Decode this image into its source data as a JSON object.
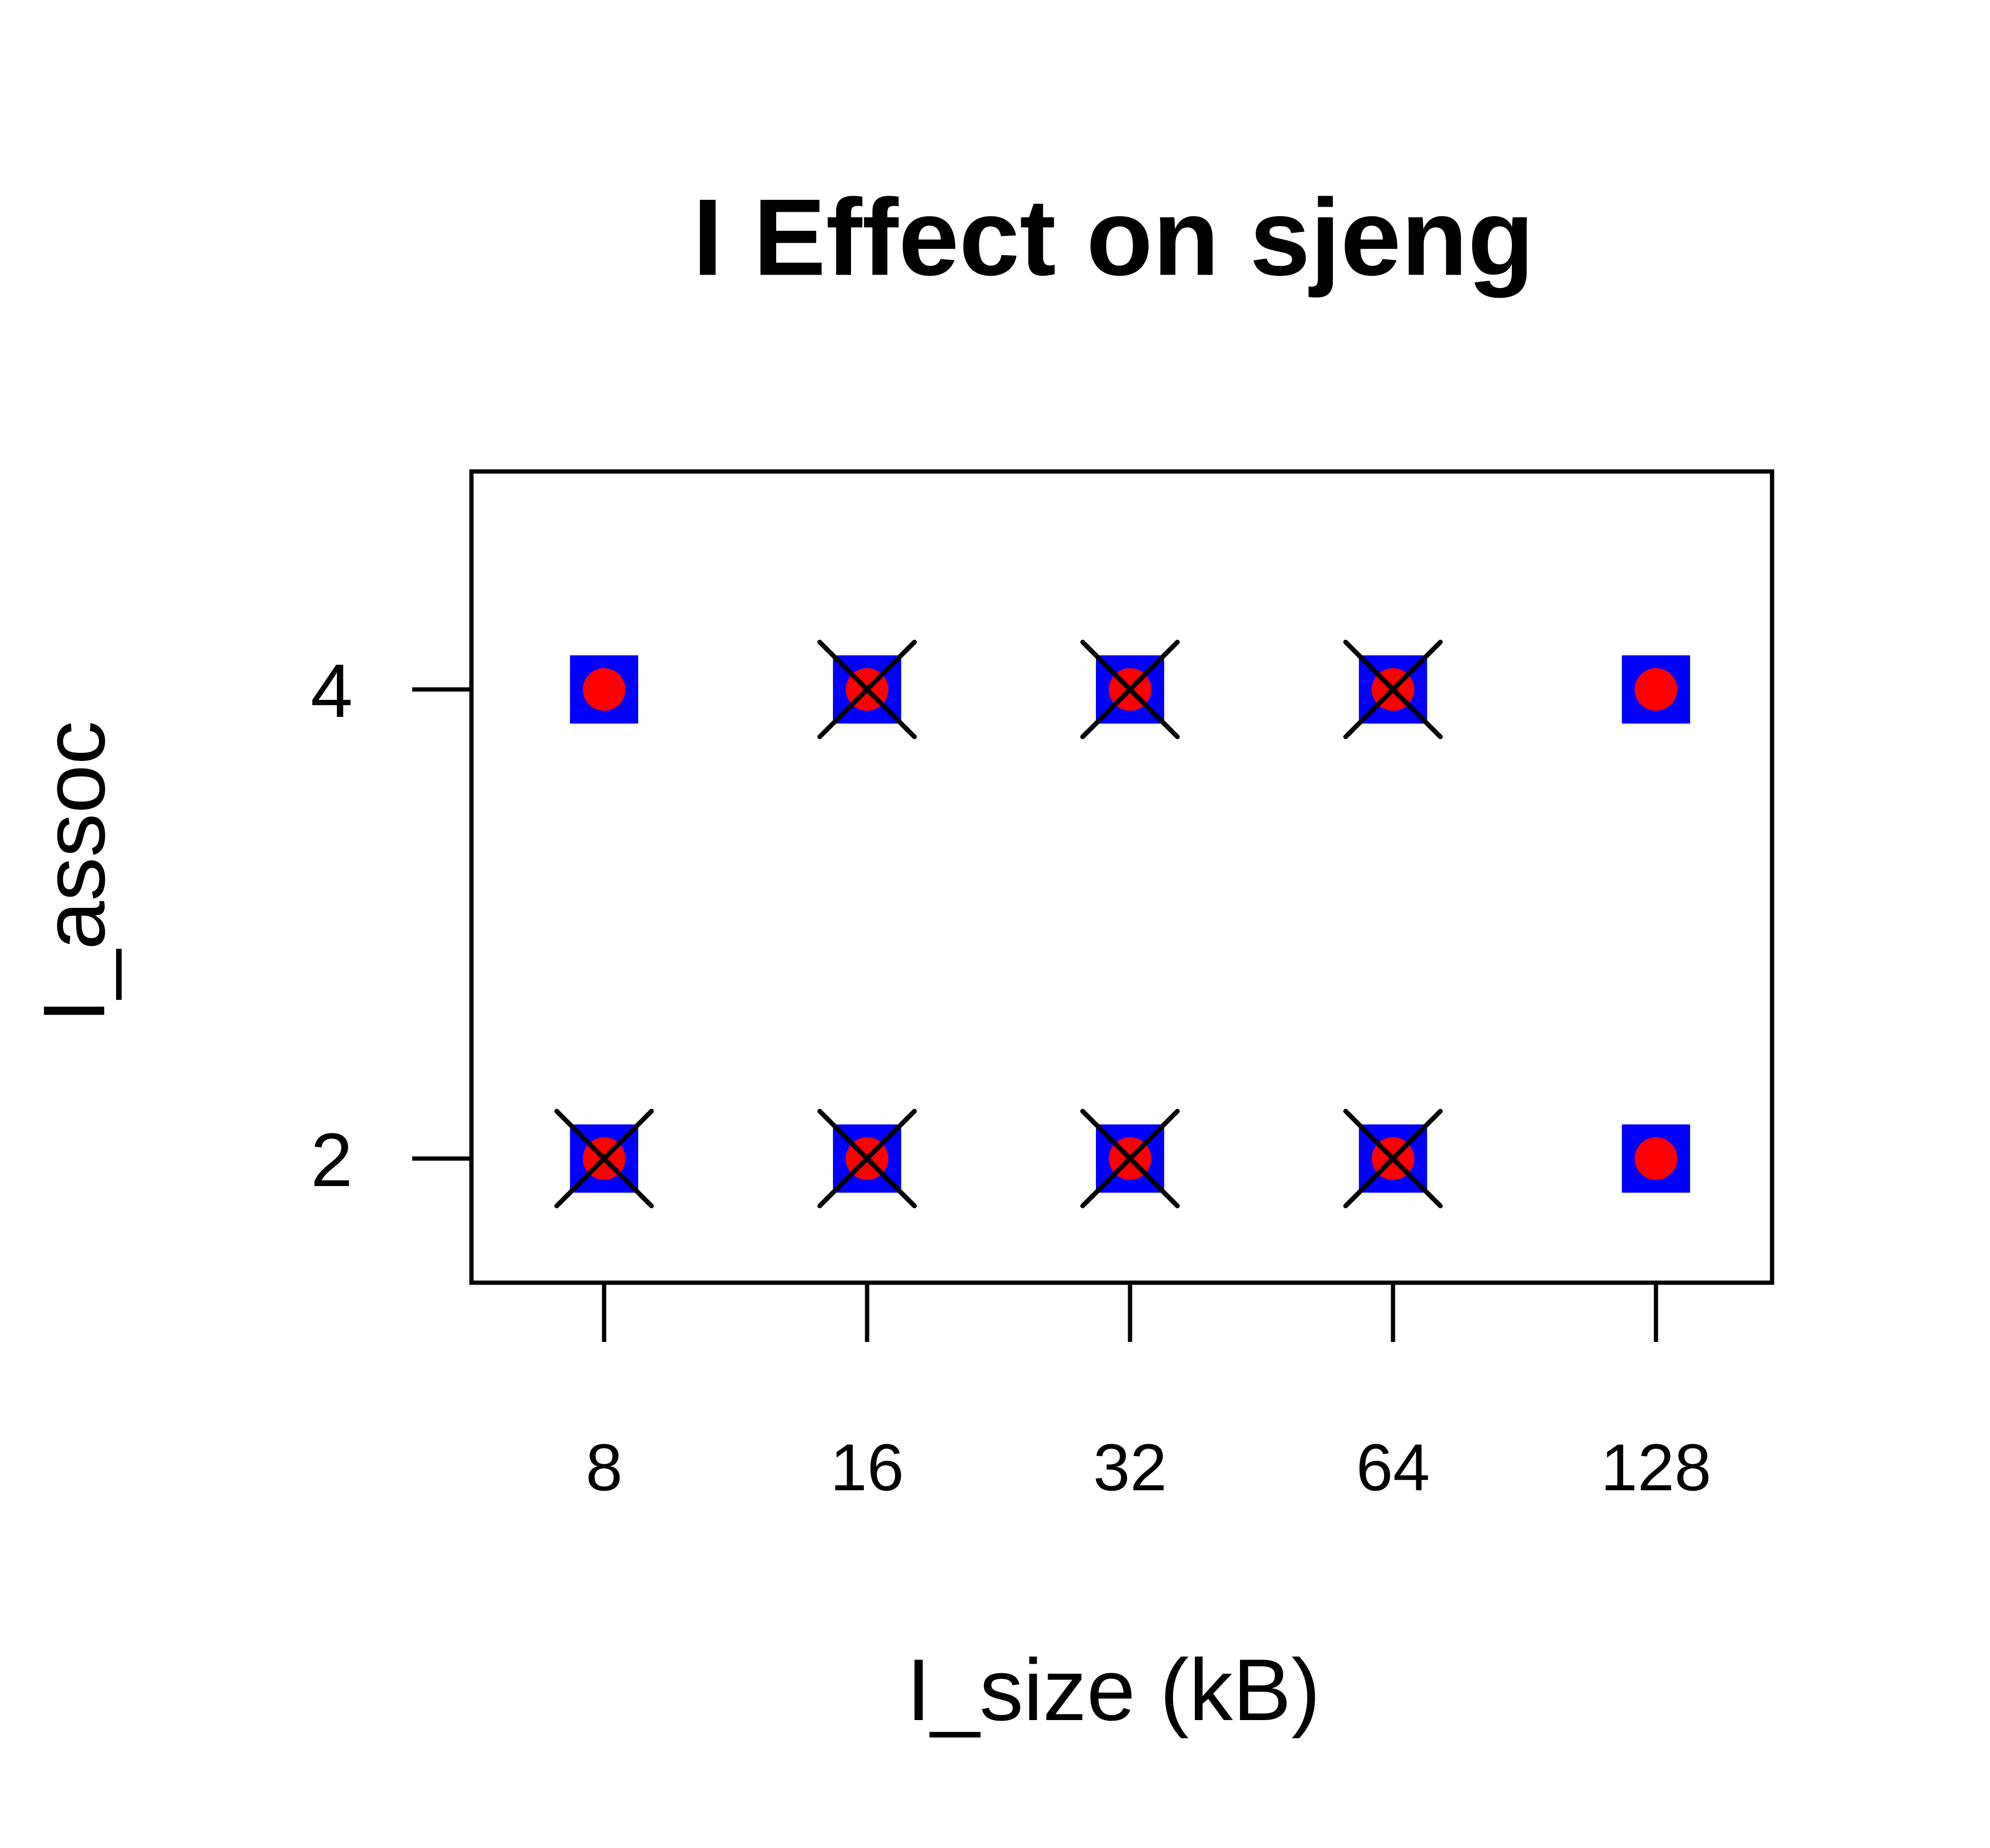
{
  "chart_data": {
    "type": "scatter",
    "title": "I Effect on sjeng",
    "xlabel": "I_size (kB)",
    "ylabel": "I_assoc",
    "x_categories": [
      "8",
      "16",
      "32",
      "64",
      "128"
    ],
    "y_ticks": [
      "2",
      "4"
    ],
    "grid": false,
    "legend": "none",
    "series": [
      {
        "marker": "square",
        "color": "#0000ff",
        "points": [
          {
            "x": "8",
            "y": 4
          },
          {
            "x": "16",
            "y": 4
          },
          {
            "x": "32",
            "y": 4
          },
          {
            "x": "64",
            "y": 4
          },
          {
            "x": "128",
            "y": 4
          },
          {
            "x": "8",
            "y": 2
          },
          {
            "x": "16",
            "y": 2
          },
          {
            "x": "32",
            "y": 2
          },
          {
            "x": "64",
            "y": 2
          },
          {
            "x": "128",
            "y": 2
          }
        ]
      },
      {
        "marker": "circle",
        "color": "#ff0000",
        "points": [
          {
            "x": "8",
            "y": 4
          },
          {
            "x": "16",
            "y": 4
          },
          {
            "x": "32",
            "y": 4
          },
          {
            "x": "64",
            "y": 4
          },
          {
            "x": "128",
            "y": 4
          },
          {
            "x": "8",
            "y": 2
          },
          {
            "x": "16",
            "y": 2
          },
          {
            "x": "32",
            "y": 2
          },
          {
            "x": "64",
            "y": 2
          },
          {
            "x": "128",
            "y": 2
          }
        ]
      },
      {
        "marker": "cross",
        "color": "#000000",
        "points": [
          {
            "x": "16",
            "y": 4
          },
          {
            "x": "32",
            "y": 4
          },
          {
            "x": "64",
            "y": 4
          },
          {
            "x": "8",
            "y": 2
          },
          {
            "x": "16",
            "y": 2
          },
          {
            "x": "32",
            "y": 2
          },
          {
            "x": "64",
            "y": 2
          }
        ]
      }
    ]
  }
}
